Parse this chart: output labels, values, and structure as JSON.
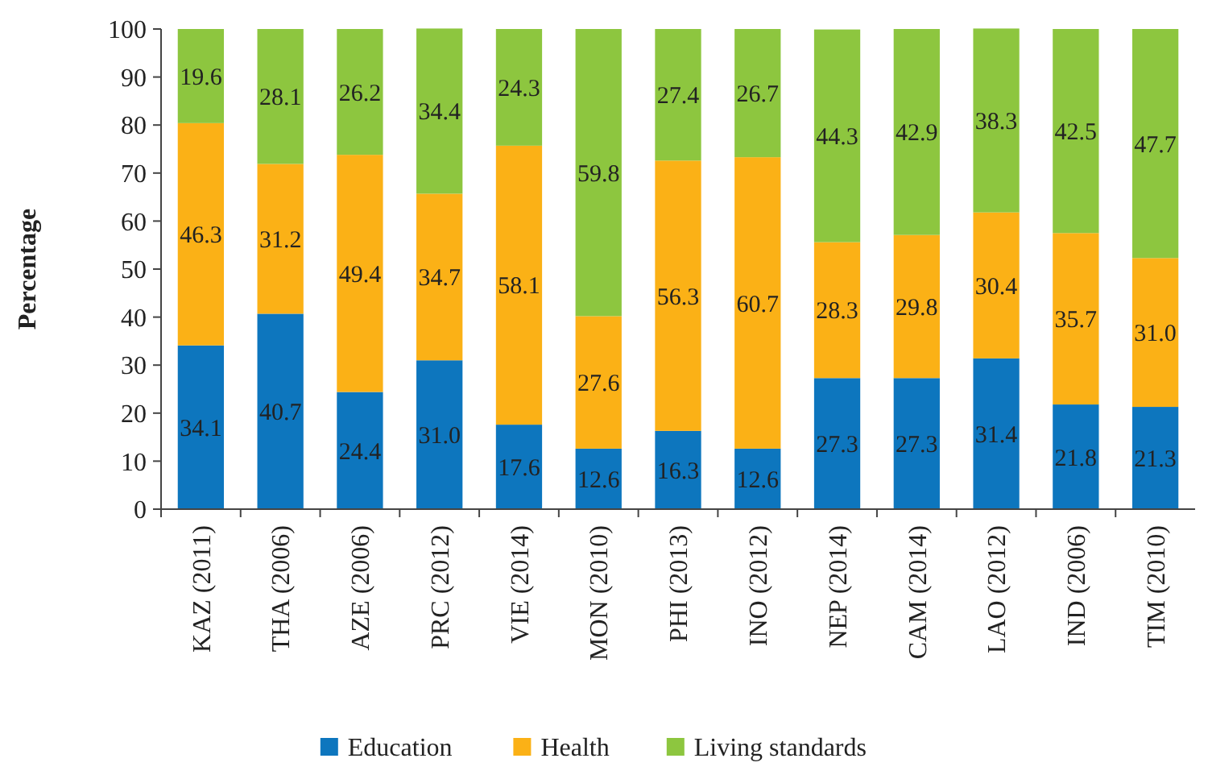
{
  "chart_data": {
    "type": "bar",
    "stacked": true,
    "ylabel": "Percentage",
    "ylim": [
      0,
      100
    ],
    "yticks": [
      0,
      10,
      20,
      30,
      40,
      50,
      60,
      70,
      80,
      90,
      100
    ],
    "grid": false,
    "legend": "bottom",
    "categories": [
      "KAZ (2011)",
      "THA (2006)",
      "AZE (2006)",
      "PRC (2012)",
      "VIE (2014)",
      "MON (2010)",
      "PHI (2013)",
      "INO (2012)",
      "NEP (2014)",
      "CAM (2014)",
      "LAO (2012)",
      "IND (2006)",
      "TIM (2010)"
    ],
    "series": [
      {
        "name": "Education",
        "color": "#0d76be",
        "values": [
          34.1,
          40.7,
          24.4,
          31.0,
          17.6,
          12.6,
          16.3,
          12.6,
          27.3,
          27.3,
          31.4,
          21.8,
          21.3
        ],
        "value_labels": [
          "34.1",
          "40.7",
          "24.4",
          "31.0",
          "17.6",
          "12.6",
          "16.3",
          "12.6",
          "27.3",
          "27.3",
          "31.4",
          "21.8",
          "21.3"
        ]
      },
      {
        "name": "Health",
        "color": "#fbb116",
        "values": [
          46.3,
          31.2,
          49.4,
          34.7,
          58.1,
          27.6,
          56.3,
          60.7,
          28.3,
          29.8,
          30.4,
          35.7,
          31.0
        ],
        "value_labels": [
          "46.3",
          "31.2",
          "49.4",
          "34.7",
          "58.1",
          "27.6",
          "56.3",
          "60.7",
          "28.3",
          "29.8",
          "30.4",
          "35.7",
          "31.0"
        ]
      },
      {
        "name": "Living standards",
        "color": "#8dc63f",
        "values": [
          19.6,
          28.1,
          26.2,
          34.4,
          24.3,
          59.8,
          27.4,
          26.7,
          44.3,
          42.9,
          38.3,
          42.5,
          47.7
        ],
        "value_labels": [
          "19.6",
          "28.1",
          "26.2",
          "34.4",
          "24.3",
          "59.8",
          "27.4",
          "26.7",
          "44.3",
          "42.9",
          "38.3",
          "42.5",
          "47.7"
        ]
      }
    ]
  }
}
